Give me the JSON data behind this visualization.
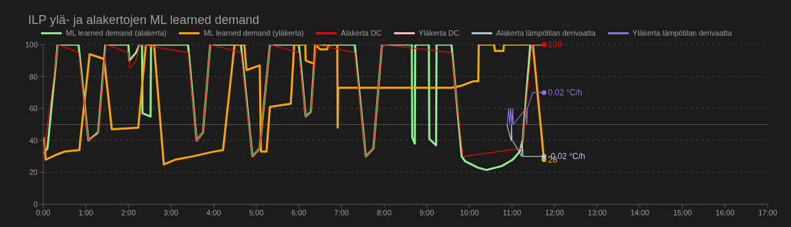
{
  "chart_data": {
    "type": "line",
    "title": "ILP ylä- ja alakertojen ML learned demand",
    "legend": "top",
    "grid": "y",
    "xlim": [
      0,
      17
    ],
    "xticks": [
      {
        "value": 0,
        "label": "0:00"
      },
      {
        "value": 1,
        "label": "1:00"
      },
      {
        "value": 2,
        "label": "2:00"
      },
      {
        "value": 3,
        "label": "3:00"
      },
      {
        "value": 4,
        "label": "4:00"
      },
      {
        "value": 5,
        "label": "5:00"
      },
      {
        "value": 6,
        "label": "6:00"
      },
      {
        "value": 7,
        "label": "7:00"
      },
      {
        "value": 8,
        "label": "8:00"
      },
      {
        "value": 9,
        "label": "9:00"
      },
      {
        "value": 10,
        "label": "10:00"
      },
      {
        "value": 11,
        "label": "11:00"
      },
      {
        "value": 12,
        "label": "12:00"
      },
      {
        "value": 13,
        "label": "13:00"
      },
      {
        "value": 14,
        "label": "14:00"
      },
      {
        "value": 15,
        "label": "15:00"
      },
      {
        "value": 16,
        "label": "16:00"
      },
      {
        "value": 17,
        "label": "17:00"
      }
    ],
    "ylim": [
      0,
      100
    ],
    "yticks": [
      0,
      20,
      40,
      60,
      80,
      100
    ],
    "y2lim": [
      -0.05,
      0.05
    ],
    "ref_lines": [
      {
        "axis": "y2",
        "value": 0,
        "color": "#555555"
      }
    ],
    "series": [
      {
        "name": "ML learned demand (alakerta)",
        "color": "#90ee90",
        "x": [
          0,
          0.1,
          0.34,
          0.83,
          1.06,
          1.29,
          1.46,
          2.0,
          2.02,
          2.18,
          2.26,
          2.32,
          2.33,
          2.52,
          2.53,
          3.4,
          3.6,
          3.75,
          3.92,
          4.64,
          4.91,
          5.08,
          5.32,
          6.0,
          6.16,
          6.28,
          6.39,
          7.31,
          7.57,
          7.75,
          7.95,
          8.65,
          8.66,
          8.72,
          8.73,
          9.05,
          9.06,
          9.22,
          9.23,
          9.58,
          9.82,
          9.9,
          10.2,
          10.4,
          10.76,
          11.02,
          11.18,
          11.25,
          11.43,
          11.75
        ],
        "values": [
          32,
          35,
          100,
          100,
          40,
          45,
          100,
          100,
          90,
          95,
          100,
          100,
          57,
          55,
          100,
          100,
          40,
          45,
          100,
          100,
          30,
          35,
          100,
          100,
          55,
          58,
          100,
          100,
          30,
          35,
          100,
          100,
          42,
          38,
          100,
          100,
          41,
          37,
          100,
          100,
          30,
          27,
          23,
          21.5,
          24,
          28,
          33,
          40,
          100,
          100
        ]
      },
      {
        "name": "ML learned demand (yläkerta)",
        "color": "#ffa500",
        "x": [
          0,
          0.03,
          0.06,
          0.3,
          0.5,
          0.85,
          0.87,
          1.09,
          1.43,
          1.61,
          2.23,
          2.41,
          2.6,
          2.83,
          3.1,
          3.5,
          4.0,
          4.22,
          4.49,
          4.72,
          4.77,
          5.08,
          5.11,
          5.24,
          5.32,
          5.81,
          5.89,
          6.15,
          6.16,
          6.36,
          6.38,
          6.5,
          6.66,
          6.7,
          6.9,
          6.91,
          6.92,
          7.5,
          8.5,
          9.58,
          9.78,
          10.09,
          10.21,
          10.22,
          10.58,
          10.6,
          10.8,
          10.81,
          11.49,
          11.75
        ],
        "values": [
          42,
          38,
          28,
          31,
          33,
          34,
          40,
          94,
          91,
          47,
          48,
          100,
          100,
          25,
          28,
          30,
          33,
          34,
          100,
          100,
          84,
          87,
          33,
          33,
          61,
          63,
          100,
          100,
          90,
          88,
          100,
          97,
          97,
          100,
          100,
          48,
          73,
          73,
          73,
          73,
          74,
          77,
          77,
          100,
          100,
          96,
          96,
          100,
          100,
          28
        ],
        "value_labels": [
          null,
          null,
          null,
          null,
          null,
          null,
          null,
          null,
          null,
          null,
          null,
          null,
          null,
          null,
          null,
          null,
          null,
          null,
          null,
          null,
          null,
          null,
          null,
          null,
          null,
          null,
          null,
          null,
          null,
          null,
          null,
          null,
          null,
          null,
          null,
          null,
          null,
          null,
          null,
          null,
          null,
          null,
          null,
          null,
          null,
          null,
          null,
          null,
          null,
          "28"
        ]
      },
      {
        "name": "Alakerta DC",
        "color": "#ff0000",
        "x": [
          0,
          0.35,
          0.83,
          1.06,
          1.29,
          1.47,
          2.0,
          2.03,
          2.18,
          2.26,
          3.4,
          3.6,
          3.75,
          3.92,
          4.64,
          4.91,
          5.08,
          5.32,
          6.0,
          6.16,
          6.28,
          6.4,
          7.31,
          7.57,
          7.75,
          7.95,
          9.58,
          9.85,
          11.23,
          11.47,
          11.75
        ],
        "values": [
          30,
          100,
          95,
          40,
          44,
          100,
          95,
          85,
          90,
          100,
          95,
          40,
          45,
          100,
          95,
          30,
          35,
          100,
          95,
          55,
          58,
          100,
          95,
          30,
          35,
          100,
          95,
          30,
          35,
          100,
          100
        ],
        "value_labels": [
          null,
          null,
          null,
          null,
          null,
          null,
          null,
          null,
          null,
          null,
          null,
          null,
          null,
          null,
          null,
          null,
          null,
          null,
          null,
          null,
          null,
          null,
          null,
          null,
          null,
          null,
          null,
          null,
          null,
          null,
          "100"
        ]
      },
      {
        "name": "Yläkerta DC",
        "color": "#ffc0cb"
      },
      {
        "name": "Alakerta lämpötilan derivaatta",
        "color": "#b0c4de",
        "axis": "y2",
        "x": [
          10.88,
          10.98,
          10.99,
          11.0,
          11.01,
          11.23,
          11.24,
          11.26,
          11.27,
          11.75
        ],
        "values": [
          0,
          -0.01,
          0,
          -0.01,
          -0.01,
          -0.02,
          -0.01,
          -0.02,
          -0.02,
          -0.02
        ],
        "value_labels": [
          null,
          null,
          null,
          null,
          null,
          null,
          null,
          null,
          null,
          "-0.02 °C/h"
        ]
      },
      {
        "name": "Yläkerta lämpötilan derivaatta",
        "color": "#9370db",
        "axis": "y2",
        "x": [
          10.87,
          10.89,
          10.92,
          10.95,
          10.97,
          11.0,
          11.02,
          11.03,
          11.33,
          11.35,
          11.36,
          11.49,
          11.75
        ],
        "values": [
          0,
          0,
          0.01,
          0,
          0.01,
          0,
          0.01,
          0,
          0.01,
          0,
          0.01,
          0.02,
          0.02
        ],
        "value_labels": [
          null,
          null,
          null,
          null,
          null,
          null,
          null,
          null,
          null,
          null,
          null,
          null,
          "0.02 °C/h"
        ]
      }
    ]
  }
}
